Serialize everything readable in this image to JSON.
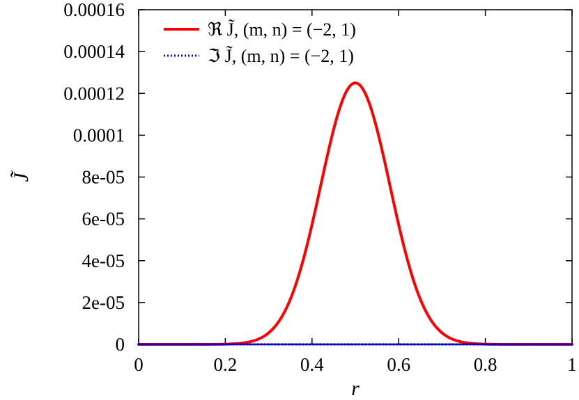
{
  "chart_data": {
    "type": "line",
    "title": "",
    "xlabel": "r",
    "ylabel": "J̃",
    "xlim": [
      0,
      1
    ],
    "ylim": [
      0,
      0.00016
    ],
    "x_ticks": [
      "0",
      "0.2",
      "0.4",
      "0.6",
      "0.8",
      "1"
    ],
    "y_ticks": [
      "0",
      "2e-05",
      "4e-05",
      "6e-05",
      "8e-05",
      "0.0001",
      "0.00012",
      "0.00014",
      "0.00016"
    ],
    "legend_position": "top-left",
    "series": [
      {
        "name": "ℜ J̃, (m, n) = (−2, 1)",
        "color": "#ff0000",
        "style": "solid",
        "x": [
          0,
          0.2,
          0.25,
          0.3,
          0.35,
          0.4,
          0.45,
          0.5,
          0.55,
          0.6,
          0.65,
          0.7,
          0.75,
          0.8,
          1
        ],
        "y": [
          0,
          0,
          2e-07,
          1.6e-06,
          1.18e-05,
          4.44e-05,
          9.17e-05,
          0.000125,
          9.17e-05,
          4.44e-05,
          1.18e-05,
          1.6e-06,
          2e-07,
          0,
          0
        ]
      },
      {
        "name": "ℑ J̃, (m, n) = (−2, 1)",
        "color": "#0000cc",
        "style": "dotted",
        "x": [
          0,
          1
        ],
        "y": [
          0,
          0
        ]
      }
    ]
  }
}
